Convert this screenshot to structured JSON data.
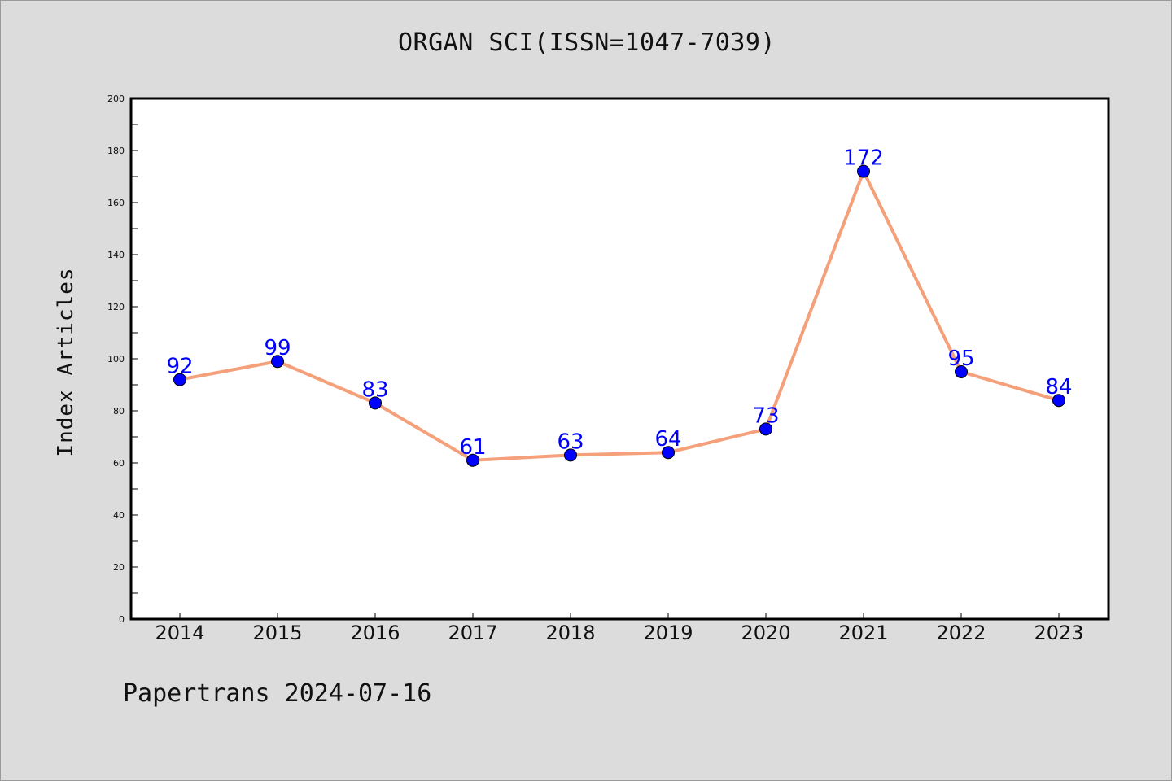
{
  "chart_data": {
    "type": "line",
    "title": "ORGAN SCI(ISSN=1047-7039)",
    "xlabel": "",
    "ylabel": "Index Articles",
    "categories": [
      "2014",
      "2015",
      "2016",
      "2017",
      "2018",
      "2019",
      "2020",
      "2021",
      "2022",
      "2023"
    ],
    "series": [
      {
        "values": [
          92,
          99,
          83,
          61,
          63,
          64,
          73,
          172,
          95,
          84
        ],
        "line_color": "#f4a07a",
        "marker_color": "#0000ff"
      }
    ],
    "ylim": [
      0,
      200
    ],
    "yticks": [
      0,
      20,
      40,
      60,
      80,
      100,
      120,
      140,
      160,
      180,
      200
    ],
    "data_labels": [
      "92",
      "99",
      "83",
      "61",
      "63",
      "64",
      "73",
      "172",
      "95",
      "84"
    ],
    "data_label_color": "#0000ff",
    "grid": false,
    "legend": "none"
  },
  "footer": {
    "note": "Papertrans 2024-07-16"
  },
  "colors": {
    "background": "#dcdcdc",
    "plot_area": "#ffffff"
  }
}
